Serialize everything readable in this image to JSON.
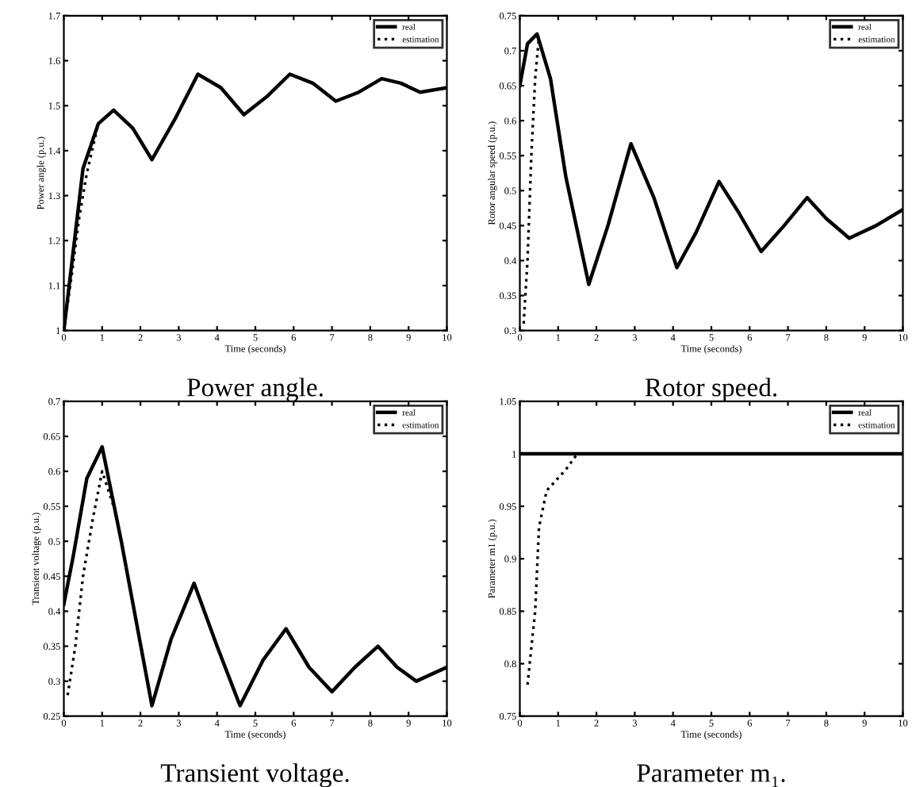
{
  "chart_data": [
    {
      "type": "line",
      "title": "Power angle.",
      "xlabel": "Time (seconds)",
      "ylabel": "Power angle (p.u.)",
      "xlim": [
        0,
        10
      ],
      "xticks": [
        0,
        1,
        2,
        3,
        4,
        5,
        6,
        7,
        8,
        9,
        10
      ],
      "ylim": [
        1,
        1.7
      ],
      "yticks": [
        1,
        1.1,
        1.2,
        1.3,
        1.4,
        1.5,
        1.6,
        1.7
      ],
      "legend": "top right",
      "grid": false,
      "series": [
        {
          "name": "real",
          "color": "#000000",
          "line_style": "solid",
          "x": [
            0,
            0.5,
            0.9,
            1.3,
            1.8,
            2.3,
            2.9,
            3.5,
            4.1,
            4.7,
            5.3,
            5.9,
            6.5,
            7.1,
            7.7,
            8.3,
            8.8,
            9.3,
            10
          ],
          "values": [
            1.0,
            1.36,
            1.46,
            1.49,
            1.45,
            1.38,
            1.47,
            1.57,
            1.54,
            1.48,
            1.52,
            1.57,
            1.55,
            1.51,
            1.53,
            1.56,
            1.55,
            1.53,
            1.54
          ]
        },
        {
          "name": "estimation",
          "color": "#000000",
          "line_style": "dotted",
          "x": [
            0,
            0.2,
            0.4,
            0.6,
            0.9
          ],
          "values": [
            1.0,
            1.12,
            1.25,
            1.35,
            1.46
          ]
        }
      ]
    },
    {
      "type": "line",
      "title": "Rotor speed.",
      "xlabel": "Time (seconds)",
      "ylabel": "Rotor angular speed (p.u.)",
      "xlim": [
        0,
        10
      ],
      "xticks": [
        0,
        1,
        2,
        3,
        4,
        5,
        6,
        7,
        8,
        9,
        10
      ],
      "ylim": [
        0.3,
        0.75
      ],
      "yticks": [
        0.3,
        0.35,
        0.4,
        0.45,
        0.5,
        0.55,
        0.6,
        0.65,
        0.7,
        0.75
      ],
      "legend": "top right",
      "grid": false,
      "series": [
        {
          "name": "real",
          "color": "#000000",
          "line_style": "solid",
          "x": [
            0,
            0.2,
            0.45,
            0.8,
            1.2,
            1.8,
            2.3,
            2.9,
            3.5,
            4.1,
            4.6,
            5.2,
            5.7,
            6.3,
            6.9,
            7.5,
            8.0,
            8.6,
            9.3,
            10
          ],
          "values": [
            0.65,
            0.71,
            0.724,
            0.66,
            0.52,
            0.366,
            0.45,
            0.567,
            0.49,
            0.39,
            0.44,
            0.513,
            0.47,
            0.413,
            0.45,
            0.49,
            0.46,
            0.432,
            0.45,
            0.473
          ]
        },
        {
          "name": "estimation",
          "color": "#000000",
          "line_style": "dotted",
          "x": [
            0.1,
            0.2,
            0.3,
            0.4,
            0.5
          ],
          "values": [
            0.31,
            0.4,
            0.55,
            0.66,
            0.72
          ]
        }
      ]
    },
    {
      "type": "line",
      "title": "Transient voltage.",
      "xlabel": "Time (seconds)",
      "ylabel": "Transient voltage (p.u.)",
      "xlim": [
        0,
        10
      ],
      "xticks": [
        0,
        1,
        2,
        3,
        4,
        5,
        6,
        7,
        8,
        9,
        10
      ],
      "ylim": [
        0.25,
        0.7
      ],
      "yticks": [
        0.25,
        0.3,
        0.35,
        0.4,
        0.45,
        0.5,
        0.55,
        0.6,
        0.65,
        0.7
      ],
      "legend": "top right",
      "grid": false,
      "series": [
        {
          "name": "real",
          "color": "#000000",
          "line_style": "solid",
          "x": [
            0,
            0.25,
            0.6,
            1.0,
            1.5,
            2.3,
            2.8,
            3.4,
            4.0,
            4.6,
            5.2,
            5.8,
            6.4,
            7.0,
            7.6,
            8.2,
            8.7,
            9.2,
            10
          ],
          "values": [
            0.41,
            0.48,
            0.59,
            0.635,
            0.5,
            0.265,
            0.36,
            0.44,
            0.35,
            0.265,
            0.33,
            0.375,
            0.32,
            0.285,
            0.32,
            0.35,
            0.32,
            0.3,
            0.32
          ]
        },
        {
          "name": "estimation",
          "color": "#000000",
          "line_style": "dotted",
          "x": [
            0.1,
            0.3,
            0.5,
            0.75,
            1.0,
            1.3
          ],
          "values": [
            0.28,
            0.35,
            0.45,
            0.53,
            0.6,
            0.55
          ]
        }
      ]
    },
    {
      "type": "line",
      "title": "Parameter m₁.",
      "xlabel": "Time (seconds)",
      "ylabel": "Parameter m1 (p.u.)",
      "xlim": [
        0,
        10
      ],
      "xticks": [
        0,
        1,
        2,
        3,
        4,
        5,
        6,
        7,
        8,
        9,
        10
      ],
      "ylim": [
        0.75,
        1.05
      ],
      "yticks": [
        0.75,
        0.8,
        0.85,
        0.9,
        0.95,
        1,
        1.05
      ],
      "legend": "top right",
      "grid": false,
      "series": [
        {
          "name": "real",
          "color": "#000000",
          "line_style": "solid",
          "x": [
            0,
            10
          ],
          "values": [
            1,
            1
          ]
        },
        {
          "name": "estimation",
          "color": "#000000",
          "line_style": "dotted",
          "x": [
            0.2,
            0.4,
            0.5,
            0.7,
            1.2,
            1.5
          ],
          "values": [
            0.78,
            0.85,
            0.93,
            0.965,
            0.985,
            1.0
          ]
        }
      ]
    }
  ]
}
